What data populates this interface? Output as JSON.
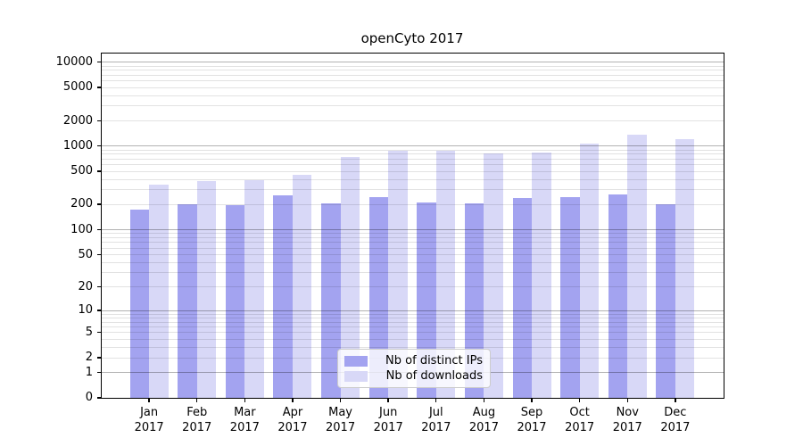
{
  "title": "openCyto 2017",
  "chart_data": {
    "type": "bar",
    "title": "openCyto 2017",
    "categories": [
      "Jan 2017",
      "Feb 2017",
      "Mar 2017",
      "Apr 2017",
      "May 2017",
      "Jun 2017",
      "Jul 2017",
      "Aug 2017",
      "Sep 2017",
      "Oct 2017",
      "Nov 2017",
      "Dec 2017"
    ],
    "series": [
      {
        "name": "Nb of distinct IPs",
        "color": "#a3a3f0",
        "values": [
          174,
          200,
          196,
          255,
          203,
          242,
          212,
          205,
          240,
          243,
          265,
          200
        ]
      },
      {
        "name": "Nb of downloads",
        "color": "#d8d8f7",
        "values": [
          340,
          378,
          388,
          445,
          728,
          875,
          877,
          808,
          835,
          1050,
          1340,
          1205
        ]
      }
    ],
    "xlabel": "",
    "ylabel": "",
    "yscale": "log1p",
    "ylim": [
      0,
      13000
    ],
    "yticks": [
      0,
      1,
      2,
      5,
      10,
      20,
      50,
      100,
      200,
      500,
      1000,
      2000,
      5000,
      10000
    ],
    "grid": "major and minor horizontal gridlines, drawn over bars",
    "legend_position": "lower center"
  }
}
